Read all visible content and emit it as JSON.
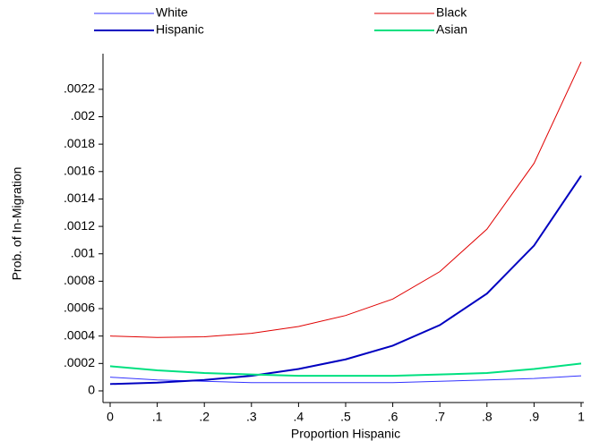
{
  "chart_data": {
    "type": "line",
    "y_label": "Prob. of In-Migration",
    "x_label": "Proportion Hispanic",
    "x": [
      0,
      0.1,
      0.2,
      0.3,
      0.4,
      0.5,
      0.6,
      0.7,
      0.8,
      0.9,
      1
    ],
    "series": [
      {
        "name": "White",
        "color": "#3333ff",
        "line_width": 1,
        "values": [
          0.0001,
          8e-05,
          7e-05,
          6e-05,
          6e-05,
          6e-05,
          6e-05,
          7e-05,
          8e-05,
          9e-05,
          0.00011
        ]
      },
      {
        "name": "Black",
        "color": "#e00000",
        "line_width": 1,
        "values": [
          0.0004,
          0.00039,
          0.000395,
          0.00042,
          0.00047,
          0.00055,
          0.00067,
          0.00087,
          0.00118,
          0.00166,
          0.0024
        ]
      },
      {
        "name": "Hispanic",
        "color": "#0000c0",
        "line_width": 2,
        "values": [
          5e-05,
          6e-05,
          8e-05,
          0.00011,
          0.00016,
          0.00023,
          0.00033,
          0.00048,
          0.00071,
          0.00106,
          0.00157
        ]
      },
      {
        "name": "Asian",
        "color": "#00e080",
        "line_width": 2,
        "values": [
          0.00018,
          0.00015,
          0.00013,
          0.00012,
          0.00011,
          0.00011,
          0.00011,
          0.00012,
          0.00013,
          0.00016,
          0.0002
        ]
      }
    ],
    "xlim": [
      0,
      1
    ],
    "xticks": [
      0,
      {
        "value": 0.1,
        "label": ".1"
      },
      {
        "value": 0.2,
        "label": ".2"
      },
      {
        "value": 0.3,
        "label": ".3"
      },
      {
        "value": 0.4,
        "label": ".4"
      },
      {
        "value": 0.5,
        "label": ".5"
      },
      {
        "value": 0.6,
        "label": ".6"
      },
      {
        "value": 0.7,
        "label": ".7"
      },
      {
        "value": 0.8,
        "label": ".8"
      },
      {
        "value": 0.9,
        "label": ".9"
      },
      1
    ],
    "ylim": [
      -8.5e-05,
      0.00246
    ],
    "yticks": [
      0,
      {
        "value": 0.0002,
        "label": ".0002"
      },
      {
        "value": 0.0004,
        "label": ".0004"
      },
      {
        "value": 0.0006,
        "label": ".0006"
      },
      {
        "value": 0.0008,
        "label": ".0008"
      },
      {
        "value": 0.001,
        "label": ".001"
      },
      {
        "value": 0.0012,
        "label": ".0012"
      },
      {
        "value": 0.0014,
        "label": ".0014"
      },
      {
        "value": 0.0016,
        "label": ".0016"
      },
      {
        "value": 0.0018,
        "label": ".0018"
      },
      {
        "value": 0.002,
        "label": ".002"
      },
      {
        "value": 0.0022,
        "label": ".0022"
      }
    ]
  }
}
